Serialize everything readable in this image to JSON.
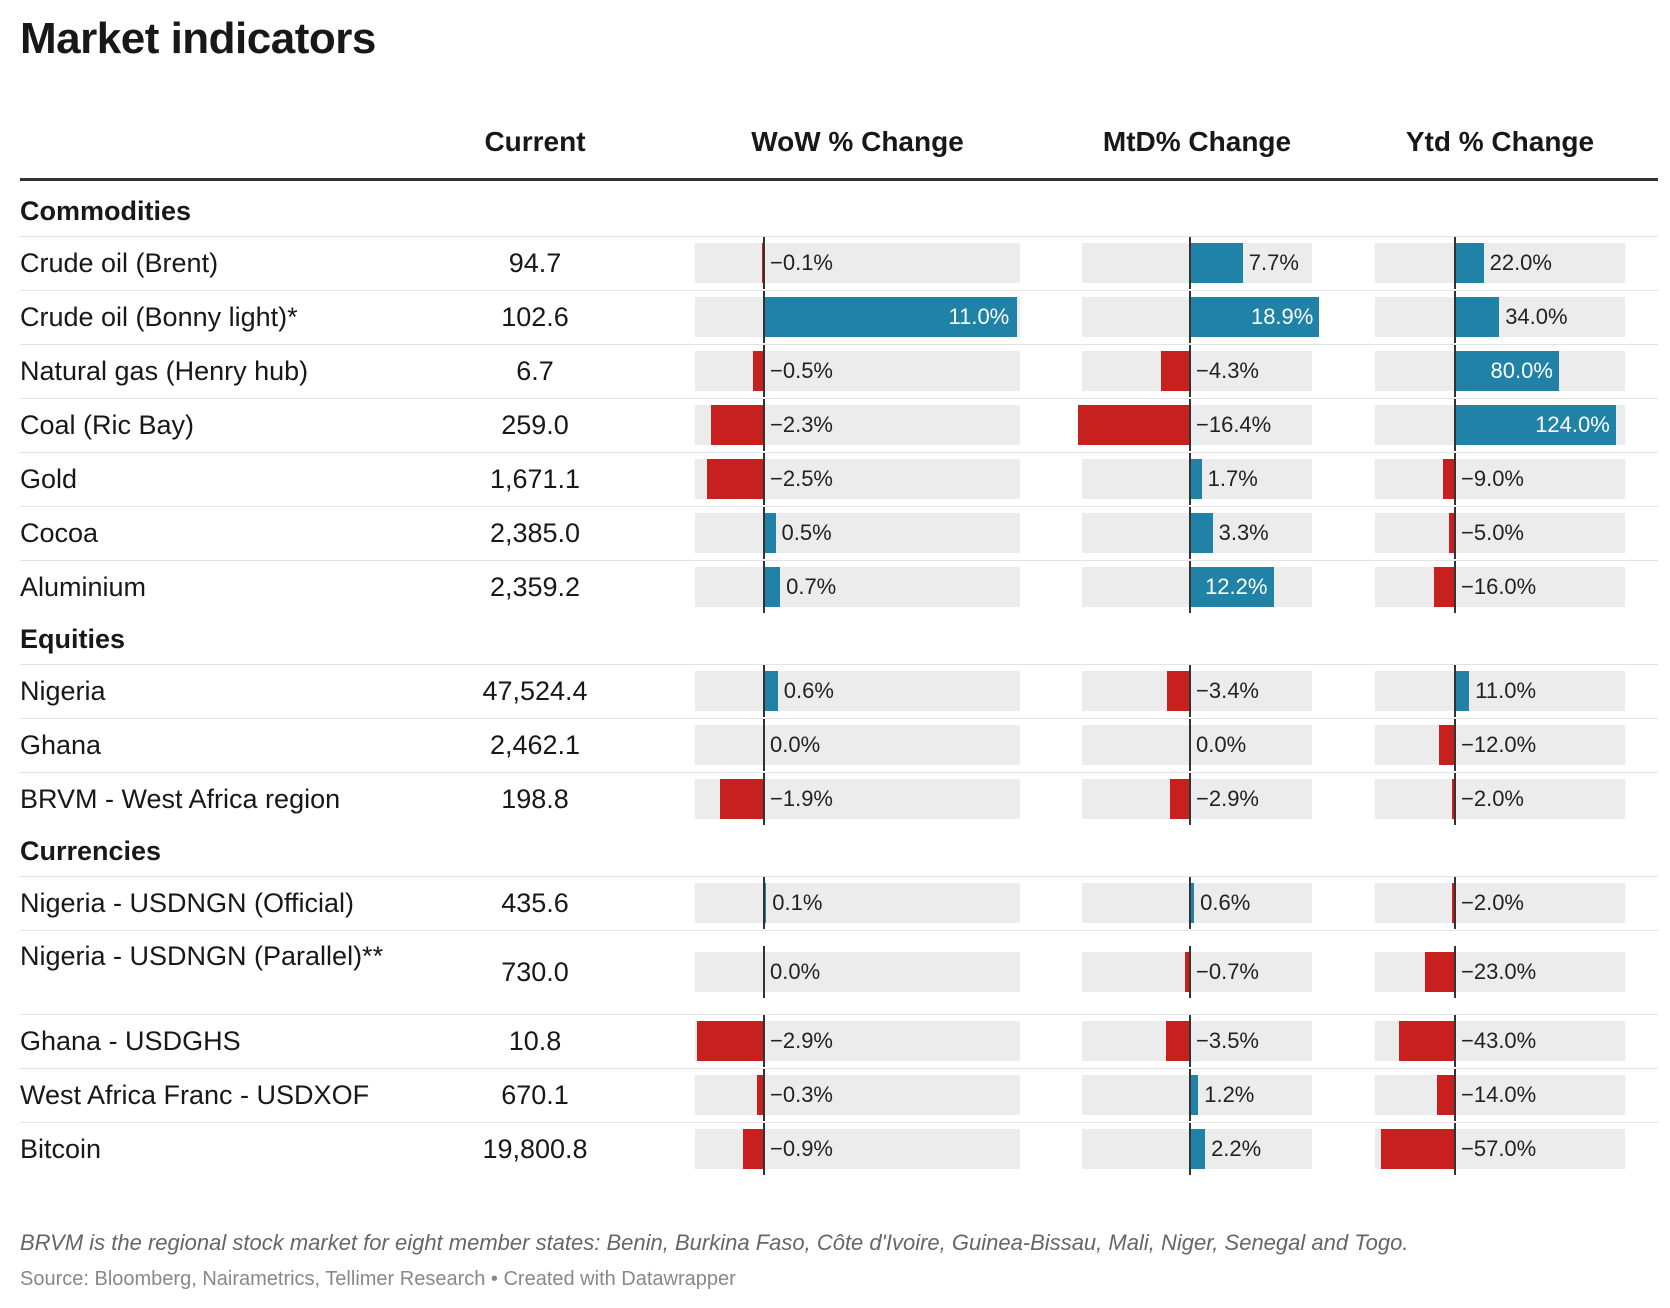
{
  "title": "Market indicators",
  "headers": {
    "current": "Current",
    "wow": "WoW % Change",
    "mtd": "MtD% Change",
    "ytd": "Ytd % Change"
  },
  "colors": {
    "positive": "#1f82a6",
    "negative": "#c81f1f",
    "track": "#ececec"
  },
  "sections": [
    {
      "name": "Commodities",
      "rows": [
        {
          "label": "Crude oil (Brent)",
          "current": "94.7",
          "wow": -0.1,
          "mtd": 7.7,
          "ytd": 22.0
        },
        {
          "label": "Crude oil (Bonny light)*",
          "current": "102.6",
          "wow": 11.0,
          "mtd": 18.9,
          "ytd": 34.0
        },
        {
          "label": "Natural gas (Henry hub)",
          "current": "6.7",
          "wow": -0.5,
          "mtd": -4.3,
          "ytd": 80.0
        },
        {
          "label": "Coal (Ric Bay)",
          "current": "259.0",
          "wow": -2.3,
          "mtd": -16.4,
          "ytd": 124.0
        },
        {
          "label": "Gold",
          "current": "1,671.1",
          "wow": -2.5,
          "mtd": 1.7,
          "ytd": -9.0
        },
        {
          "label": "Cocoa",
          "current": "2,385.0",
          "wow": 0.5,
          "mtd": 3.3,
          "ytd": -5.0
        },
        {
          "label": "Aluminium",
          "current": "2,359.2",
          "wow": 0.7,
          "mtd": 12.2,
          "ytd": -16.0
        }
      ]
    },
    {
      "name": "Equities",
      "rows": [
        {
          "label": "Nigeria",
          "current": "47,524.4",
          "wow": 0.6,
          "mtd": -3.4,
          "ytd": 11.0
        },
        {
          "label": "Ghana",
          "current": "2,462.1",
          "wow": 0.0,
          "mtd": 0.0,
          "ytd": -12.0
        },
        {
          "label": "BRVM - West Africa region",
          "current": "198.8",
          "wow": -1.9,
          "mtd": -2.9,
          "ytd": -2.0
        }
      ]
    },
    {
      "name": "Currencies",
      "rows": [
        {
          "label": "Nigeria - USDNGN (Official)",
          "current": "435.6",
          "wow": 0.1,
          "mtd": 0.6,
          "ytd": -2.0
        },
        {
          "label": "Nigeria - USDNGN (Parallel)**",
          "current": "730.0",
          "wow": 0.0,
          "mtd": -0.7,
          "ytd": -23.0
        },
        {
          "label": "Ghana - USDGHS",
          "current": "10.8",
          "wow": -2.9,
          "mtd": -3.5,
          "ytd": -43.0
        },
        {
          "label": "West Africa Franc - USDXOF",
          "current": "670.1",
          "wow": -0.3,
          "mtd": 1.2,
          "ytd": -14.0
        },
        {
          "label": "Bitcoin",
          "current": "19,800.8",
          "wow": -0.9,
          "mtd": 2.2,
          "ytd": -57.0
        }
      ]
    }
  ],
  "note": "BRVM is the regional stock market for eight member states: Benin, Burkina Faso, Côte d'Ivoire, Guinea-Bissau, Mali, Niger, Senegal and Togo.",
  "source": "Source: Bloomberg, Nairametrics, Tellimer Research • Created with Datawrapper",
  "chart_data": {
    "type": "table",
    "columns": [
      "Current",
      "WoW % Change",
      "MtD% Change",
      "Ytd % Change"
    ],
    "groups": [
      "Commodities",
      "Equities",
      "Currencies"
    ],
    "column_ranges": {
      "wow": [
        -2.9,
        11.0
      ],
      "mtd": [
        -16.4,
        18.9
      ],
      "ytd": [
        -57.0,
        124.0
      ]
    }
  }
}
